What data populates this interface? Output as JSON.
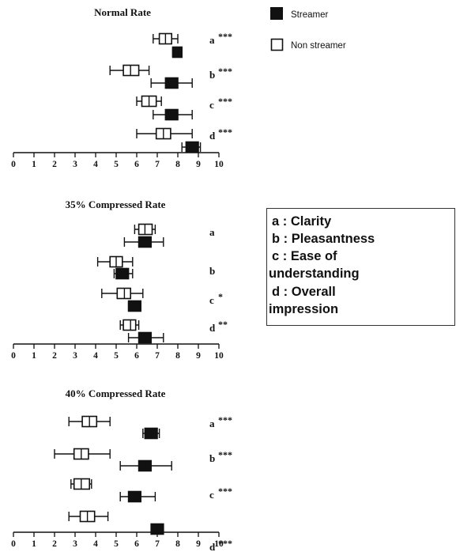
{
  "legend": {
    "streamer": "Streamer",
    "non_streamer": "Non streamer"
  },
  "key_box": {
    "lines": [
      "a : Clarity",
      "b : Pleasantness",
      "c : Ease of",
      "understanding",
      "d  : Overall",
      "impression"
    ]
  },
  "chart_data": [
    {
      "type": "box",
      "title": "Normal Rate",
      "xlim": [
        0,
        10
      ],
      "xticks": [
        "0",
        "1",
        "2",
        "3",
        "4",
        "5",
        "6",
        "7",
        "8",
        "9",
        "10"
      ],
      "groups": [
        {
          "label": "a",
          "sig": "***",
          "non_streamer": {
            "mean": 7.4,
            "box": [
              7.1,
              7.7
            ],
            "whisker": [
              6.8,
              8.0
            ]
          },
          "streamer": {
            "mean": 8.0,
            "box": [
              7.75,
              8.2
            ],
            "whisker": [
              7.75,
              8.2
            ]
          }
        },
        {
          "label": "b",
          "sig": "***",
          "non_streamer": {
            "mean": 5.7,
            "box": [
              5.35,
              6.1
            ],
            "whisker": [
              4.7,
              6.6
            ]
          },
          "streamer": {
            "mean": 7.7,
            "box": [
              7.4,
              8.0
            ],
            "whisker": [
              6.7,
              8.7
            ]
          }
        },
        {
          "label": "c",
          "sig": "***",
          "non_streamer": {
            "mean": 6.6,
            "box": [
              6.25,
              6.95
            ],
            "whisker": [
              6.0,
              7.2
            ]
          },
          "streamer": {
            "mean": 7.7,
            "box": [
              7.4,
              8.0
            ],
            "whisker": [
              6.8,
              8.7
            ]
          }
        },
        {
          "label": "d",
          "sig": "***",
          "non_streamer": {
            "mean": 7.3,
            "box": [
              6.95,
              7.65
            ],
            "whisker": [
              6.0,
              8.7
            ]
          },
          "streamer": {
            "mean": 8.7,
            "box": [
              8.4,
              9.0
            ],
            "whisker": [
              8.2,
              9.1
            ]
          }
        }
      ]
    },
    {
      "type": "box",
      "title": "35% Compressed Rate",
      "xlim": [
        0,
        10
      ],
      "xticks": [
        "0",
        "1",
        "2",
        "3",
        "4",
        "5",
        "6",
        "7",
        "8",
        "9",
        "10"
      ],
      "groups": [
        {
          "label": "a",
          "sig": "",
          "non_streamer": {
            "mean": 6.4,
            "box": [
              6.1,
              6.75
            ],
            "whisker": [
              5.9,
              6.9
            ]
          },
          "streamer": {
            "mean": 6.4,
            "box": [
              6.1,
              6.7
            ],
            "whisker": [
              5.4,
              7.3
            ]
          }
        },
        {
          "label": "b",
          "sig": "",
          "non_streamer": {
            "mean": 5.0,
            "box": [
              4.7,
              5.3
            ],
            "whisker": [
              4.1,
              5.8
            ]
          },
          "streamer": {
            "mean": 5.3,
            "box": [
              5.0,
              5.6
            ],
            "whisker": [
              4.9,
              5.8
            ]
          }
        },
        {
          "label": "c",
          "sig": "*",
          "non_streamer": {
            "mean": 5.4,
            "box": [
              5.05,
              5.7
            ],
            "whisker": [
              4.3,
              6.3
            ]
          },
          "streamer": {
            "mean": 5.9,
            "box": [
              5.6,
              6.2
            ],
            "whisker": [
              5.6,
              6.2
            ]
          }
        },
        {
          "label": "d",
          "sig": "**",
          "non_streamer": {
            "mean": 5.7,
            "box": [
              5.35,
              5.95
            ],
            "whisker": [
              5.2,
              6.1
            ]
          },
          "streamer": {
            "mean": 6.4,
            "box": [
              6.1,
              6.7
            ],
            "whisker": [
              5.6,
              7.3
            ]
          }
        }
      ]
    },
    {
      "type": "box",
      "title": "40% Compressed Rate",
      "xlim": [
        0,
        10
      ],
      "xticks": [
        "0",
        "1",
        "2",
        "3",
        "4",
        "5",
        "6",
        "7",
        "8",
        "9",
        "10"
      ],
      "groups": [
        {
          "label": "a",
          "sig": "***",
          "non_streamer": {
            "mean": 3.7,
            "box": [
              3.35,
              4.05
            ],
            "whisker": [
              2.7,
              4.7
            ]
          },
          "streamer": {
            "mean": 6.7,
            "box": [
              6.4,
              7.0
            ],
            "whisker": [
              6.3,
              7.1
            ]
          }
        },
        {
          "label": "b",
          "sig": "***",
          "non_streamer": {
            "mean": 3.3,
            "box": [
              2.95,
              3.65
            ],
            "whisker": [
              2.0,
              4.7
            ]
          },
          "streamer": {
            "mean": 6.4,
            "box": [
              6.1,
              6.7
            ],
            "whisker": [
              5.2,
              7.7
            ]
          }
        },
        {
          "label": "c",
          "sig": "***",
          "non_streamer": {
            "mean": 3.3,
            "box": [
              2.95,
              3.7
            ],
            "whisker": [
              2.8,
              3.8
            ]
          },
          "streamer": {
            "mean": 5.9,
            "box": [
              5.6,
              6.2
            ],
            "whisker": [
              5.2,
              6.9
            ]
          }
        },
        {
          "label": "d",
          "sig": "***",
          "non_streamer": {
            "mean": 3.6,
            "box": [
              3.25,
              3.95
            ],
            "whisker": [
              2.7,
              4.6
            ]
          },
          "streamer": {
            "mean": 7.0,
            "box": [
              6.7,
              7.3
            ],
            "whisker": [
              6.7,
              7.3
            ]
          }
        }
      ]
    }
  ],
  "colors": {
    "streamer": "#111111",
    "non_streamer": "#ffffff",
    "line": "#111111"
  }
}
